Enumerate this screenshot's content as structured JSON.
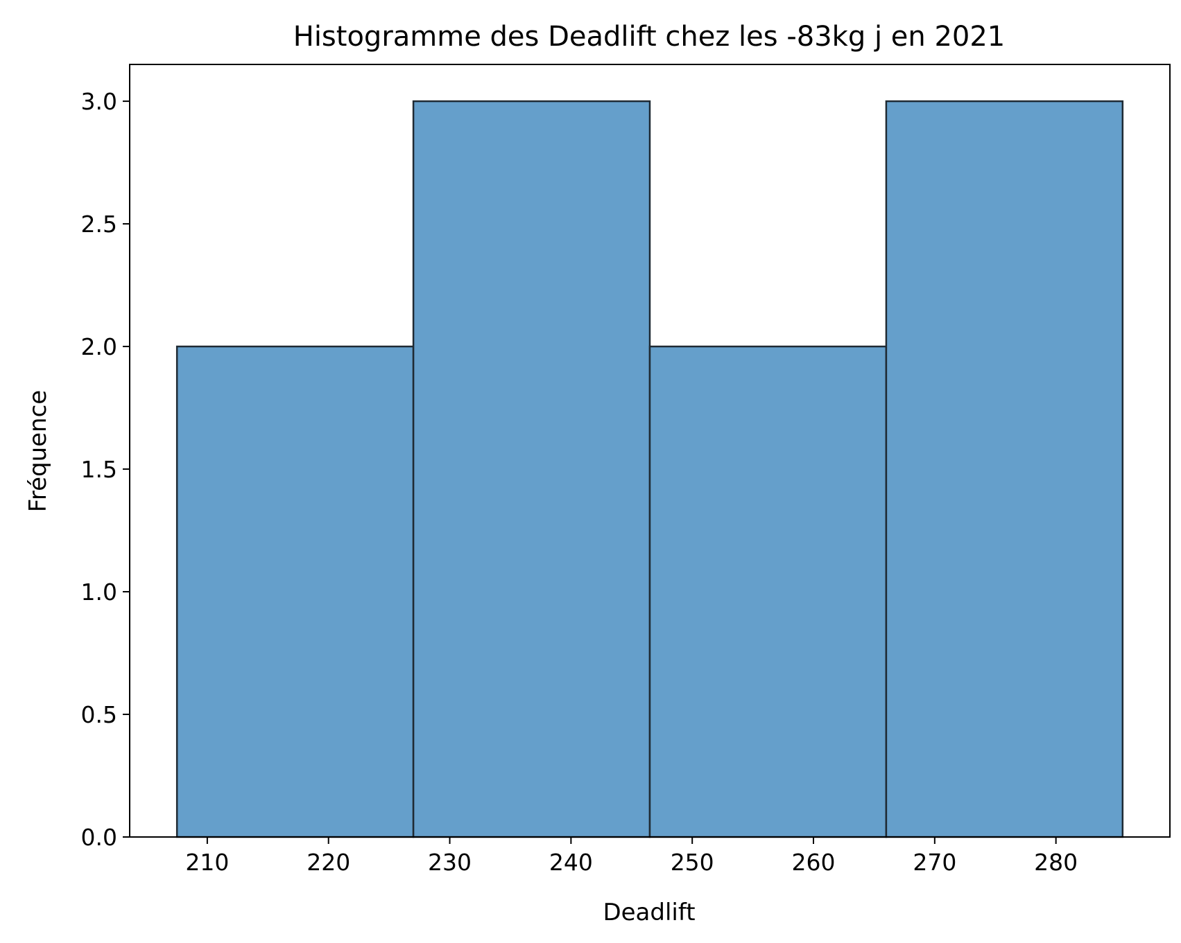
{
  "chart_data": {
    "type": "bar",
    "title": "Histogramme des Deadlift chez les -83kg j en 2021",
    "xlabel": "Deadlift",
    "ylabel": "Fréquence",
    "bins": [
      {
        "start": 207.5,
        "end": 227.0,
        "count": 2
      },
      {
        "start": 227.0,
        "end": 246.5,
        "count": 3
      },
      {
        "start": 246.5,
        "end": 266.0,
        "count": 2
      },
      {
        "start": 266.0,
        "end": 285.5,
        "count": 3
      }
    ],
    "xlim": [
      203.6,
      289.4
    ],
    "ylim": [
      0,
      3.15
    ],
    "xticks": [
      210,
      220,
      230,
      240,
      250,
      260,
      270,
      280
    ],
    "yticks": [
      0.0,
      0.5,
      1.0,
      1.5,
      2.0,
      2.5,
      3.0
    ],
    "ytick_labels": [
      "0.0",
      "0.5",
      "1.0",
      "1.5",
      "2.0",
      "2.5",
      "3.0"
    ],
    "grid": false,
    "bar_color": "#659fcb",
    "edge_color": "#1f2a33"
  }
}
